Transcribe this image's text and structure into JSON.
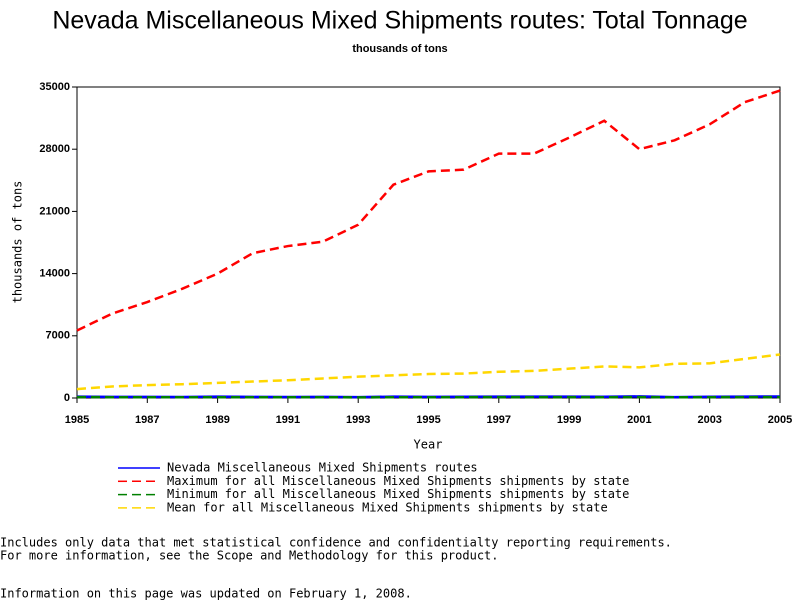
{
  "chart_data": {
    "type": "line",
    "title": "Nevada Miscellaneous Mixed Shipments routes: Total Tonnage",
    "subtitle": "thousands of tons",
    "x_label": "Year",
    "y_label": "thousands of tons",
    "x": [
      1985,
      1986,
      1987,
      1988,
      1989,
      1990,
      1991,
      1992,
      1993,
      1994,
      1995,
      1996,
      1997,
      1998,
      1999,
      2000,
      2001,
      2002,
      2003,
      2004,
      2005
    ],
    "series": [
      {
        "name": "Nevada Miscellaneous Mixed Shipments routes",
        "color": "#0000ff",
        "dash": "solid",
        "values": [
          150,
          130,
          120,
          110,
          150,
          120,
          110,
          130,
          100,
          150,
          130,
          140,
          150,
          160,
          150,
          140,
          180,
          100,
          140,
          160,
          170
        ]
      },
      {
        "name": "Maximum for all Miscellaneous Mixed Shipments shipments by state",
        "color": "#ff0000",
        "dash": "dashed",
        "values": [
          7600,
          9500,
          10800,
          12300,
          14000,
          16300,
          17100,
          17600,
          19500,
          24000,
          25500,
          25700,
          27500,
          27500,
          29300,
          31200,
          28000,
          29000,
          30800,
          33300,
          34600
        ]
      },
      {
        "name": "Minimum for all Miscellaneous Mixed Shipments shipments by state",
        "color": "#008000",
        "dash": "dashed",
        "values": [
          100,
          90,
          80,
          80,
          90,
          80,
          80,
          90,
          70,
          90,
          90,
          90,
          100,
          100,
          100,
          90,
          100,
          80,
          90,
          100,
          100
        ]
      },
      {
        "name": "Mean for all Miscellaneous Mixed Shipments shipments by state",
        "color": "#ffd700",
        "dash": "dashed",
        "values": [
          1000,
          1300,
          1450,
          1550,
          1700,
          1850,
          2000,
          2200,
          2400,
          2550,
          2700,
          2750,
          2950,
          3050,
          3300,
          3550,
          3450,
          3850,
          3900,
          4400,
          4900
        ]
      }
    ],
    "xlim": [
      1985,
      2005
    ],
    "ylim": [
      0,
      35000
    ],
    "xticks": [
      1985,
      1987,
      1989,
      1991,
      1993,
      1995,
      1997,
      1999,
      2001,
      2003,
      2005
    ],
    "yticks": [
      0,
      7000,
      14000,
      21000,
      28000,
      35000
    ]
  },
  "notes": [
    "Includes only data that met statistical confidence and confidentialty reporting requirements.",
    "For more information, see the Scope and Methodology for this product.",
    "Information on this page was updated on February 1, 2008."
  ]
}
